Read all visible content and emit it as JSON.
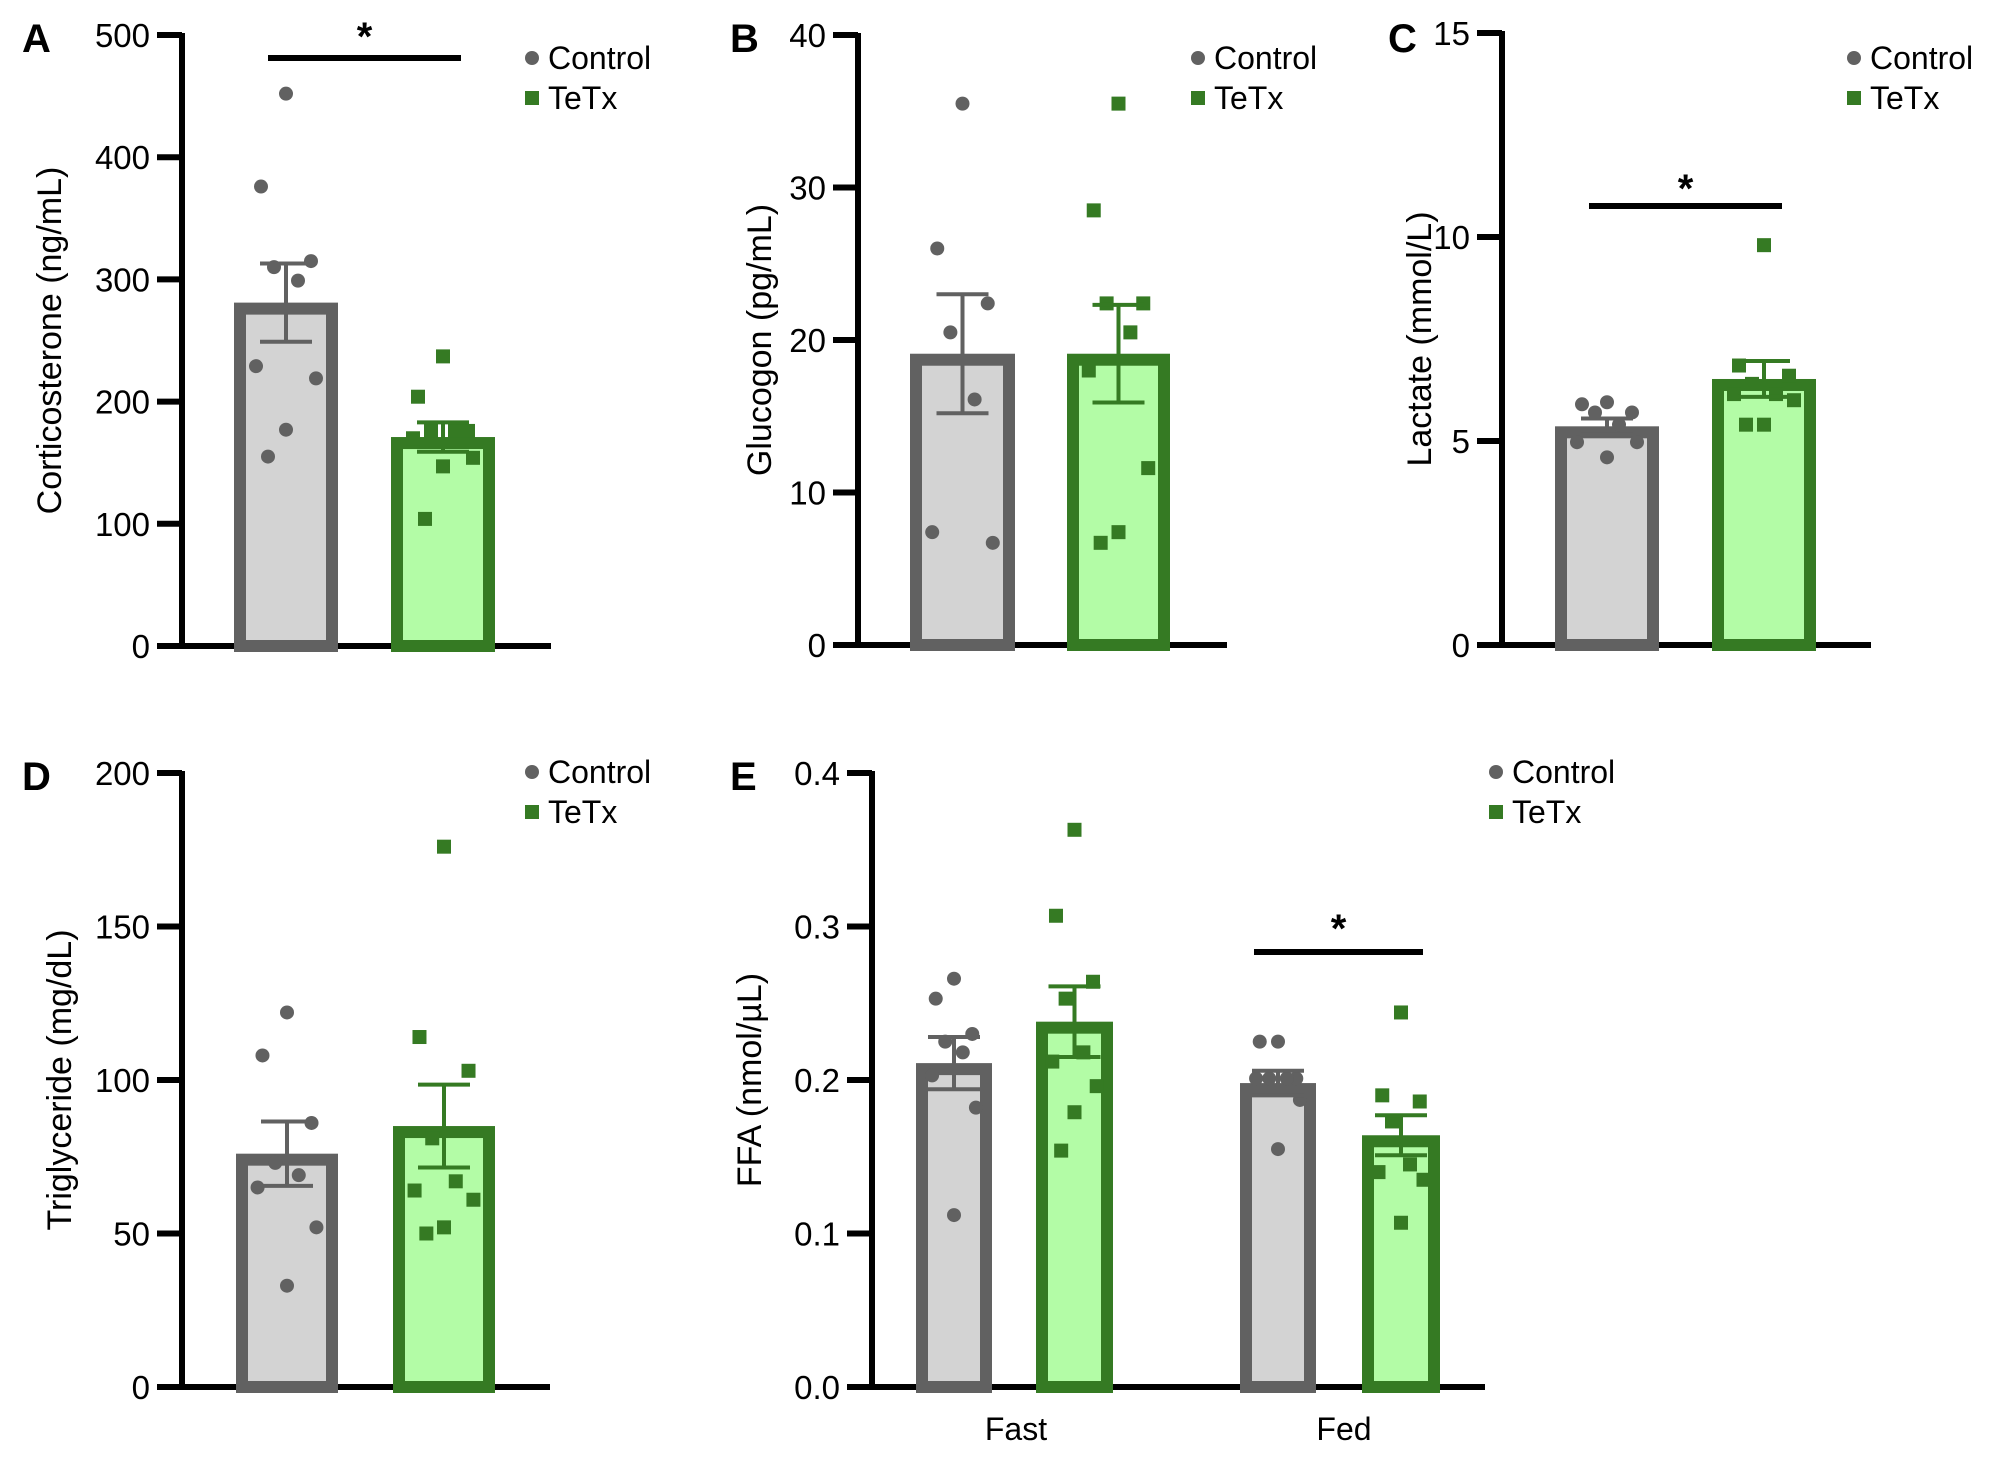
{
  "figure": {
    "colors": {
      "control_edge": "#616161",
      "control_fill": "#d3d3d3",
      "tetx_edge": "#357a23",
      "tetx_fill": "#b3fca6",
      "axis": "#000000"
    },
    "legend": {
      "control_label": "Control",
      "tetx_label": "TeTx"
    }
  },
  "chart_data": [
    {
      "panel": "A",
      "type": "bar",
      "title": "",
      "xlabel": "",
      "ylabel": "Corticosterone (ng/mL)",
      "ylim": [
        0,
        500
      ],
      "yticks": [
        "0",
        "100",
        "200",
        "300",
        "400",
        "500"
      ],
      "ytick_values": [
        0,
        100,
        200,
        300,
        400,
        500
      ],
      "categories": [
        ""
      ],
      "legend_position": "top-right",
      "series": [
        {
          "name": "Control",
          "mean": 281,
          "sem": 32,
          "points": [
            452,
            376,
            315,
            310,
            299,
            229,
            219,
            177,
            155
          ]
        },
        {
          "name": "TeTx",
          "mean": 171,
          "sem": 12,
          "points": [
            237,
            204,
            176,
            176,
            176,
            170,
            154,
            147,
            104
          ]
        }
      ],
      "significance": [
        {
          "between": [
            "Control",
            "TeTx"
          ],
          "label": "*"
        }
      ]
    },
    {
      "panel": "B",
      "type": "bar",
      "title": "",
      "xlabel": "",
      "ylabel": "Glucogon (pg/mL)",
      "ylim": [
        0,
        40
      ],
      "yticks": [
        "0",
        "10",
        "20",
        "30",
        "40"
      ],
      "ytick_values": [
        0,
        10,
        20,
        30,
        40
      ],
      "categories": [
        ""
      ],
      "legend_position": "top-right",
      "series": [
        {
          "name": "Control",
          "mean": 19.1,
          "sem": 3.9,
          "points": [
            35.5,
            26.0,
            22.4,
            20.5,
            16.1,
            7.4,
            6.7
          ]
        },
        {
          "name": "TeTx",
          "mean": 19.1,
          "sem": 3.2,
          "points": [
            35.5,
            28.5,
            22.4,
            22.4,
            20.5,
            18.0,
            11.6,
            7.4,
            6.7
          ]
        }
      ],
      "significance": []
    },
    {
      "panel": "C",
      "type": "bar",
      "title": "",
      "xlabel": "",
      "ylabel": "Lactate (mmol/L)",
      "ylim": [
        0,
        15
      ],
      "yticks": [
        "0",
        "5",
        "10",
        "15"
      ],
      "ytick_values": [
        0,
        5,
        10,
        15
      ],
      "categories": [
        ""
      ],
      "legend_position": "top-right",
      "series": [
        {
          "name": "Control",
          "mean": 5.36,
          "sem": 0.19,
          "points": [
            5.95,
            5.9,
            5.7,
            5.7,
            5.4,
            4.97,
            4.97,
            4.6
          ]
        },
        {
          "name": "TeTx",
          "mean": 6.52,
          "sem": 0.44,
          "points": [
            9.8,
            6.85,
            6.6,
            6.4,
            6.15,
            6.15,
            6.0,
            5.4,
            5.4
          ]
        }
      ],
      "significance": [
        {
          "between": [
            "Control",
            "TeTx"
          ],
          "label": "*"
        }
      ]
    },
    {
      "panel": "D",
      "type": "bar",
      "title": "",
      "xlabel": "",
      "ylabel": "Triglyceride (mg/dL)",
      "ylim": [
        0,
        200
      ],
      "yticks": [
        "0",
        "50",
        "100",
        "150",
        "200"
      ],
      "ytick_values": [
        0,
        50,
        100,
        150,
        200
      ],
      "categories": [
        ""
      ],
      "legend_position": "top-right",
      "series": [
        {
          "name": "Control",
          "mean": 76,
          "sem": 10.5,
          "points": [
            122,
            108,
            86,
            73,
            69,
            65,
            52,
            33
          ]
        },
        {
          "name": "TeTx",
          "mean": 85,
          "sem": 13.5,
          "points": [
            176,
            114,
            103,
            81,
            67,
            64,
            61,
            52,
            50
          ]
        }
      ],
      "significance": []
    },
    {
      "panel": "E",
      "type": "bar",
      "title": "",
      "xlabel": "",
      "ylabel": "FFA (nmol/µL)",
      "ylim": [
        0,
        0.4
      ],
      "yticks": [
        "0.0",
        "0.1",
        "0.2",
        "0.3",
        "0.4"
      ],
      "ytick_values": [
        0,
        0.1,
        0.2,
        0.3,
        0.4
      ],
      "categories": [
        "Fast",
        "Fed"
      ],
      "legend_position": "top-right",
      "series": [
        {
          "name": "Control",
          "mean": [
            0.211,
            0.198
          ],
          "sem": [
            0.017,
            0.008
          ],
          "points": [
            [
              0.266,
              0.253,
              0.23,
              0.225,
              0.218,
              0.203,
              0.182,
              0.112
            ],
            [
              0.225,
              0.225,
              0.201,
              0.201,
              0.201,
              0.201,
              0.187,
              0.155
            ]
          ]
        },
        {
          "name": "TeTx",
          "mean": [
            0.238,
            0.164
          ],
          "sem": [
            0.023,
            0.013
          ],
          "points": [
            [
              0.363,
              0.307,
              0.264,
              0.253,
              0.218,
              0.212,
              0.196,
              0.179,
              0.154
            ],
            [
              0.244,
              0.19,
              0.186,
              0.173,
              0.145,
              0.14,
              0.135,
              0.107
            ]
          ]
        }
      ],
      "significance": [
        {
          "category": "Fed",
          "between": [
            "Control",
            "TeTx"
          ],
          "label": "*"
        }
      ]
    }
  ]
}
